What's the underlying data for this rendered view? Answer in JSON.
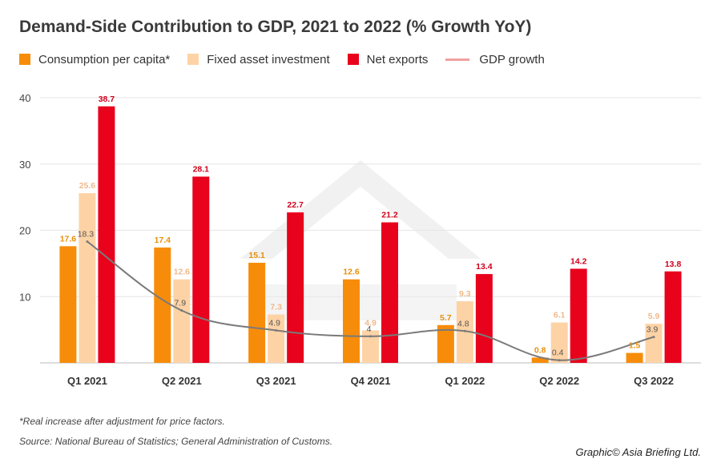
{
  "chart_data": {
    "type": "bar",
    "title": "Demand-Side Contribution to GDP, 2021 to 2022 (% Growth YoY)",
    "categories": [
      "Q1 2021",
      "Q2 2021",
      "Q3 2021",
      "Q4 2021",
      "Q1 2022",
      "Q2 2022",
      "Q3 2022"
    ],
    "series": [
      {
        "name": "Consumption per capita*",
        "type": "bar",
        "color": "#f78c0a",
        "label_color": "#e8900c",
        "values": [
          17.6,
          17.4,
          15.1,
          12.6,
          5.7,
          0.8,
          1.5
        ]
      },
      {
        "name": "Fixed asset investment",
        "type": "bar",
        "color": "#fdd3a6",
        "label_color": "#f0b98a",
        "values": [
          25.6,
          12.6,
          7.3,
          4.9,
          9.3,
          6.1,
          5.9
        ]
      },
      {
        "name": "Net exports",
        "type": "bar",
        "color": "#e8021c",
        "label_color": "#d0021b",
        "values": [
          38.7,
          28.1,
          22.7,
          21.2,
          13.4,
          14.2,
          13.8
        ]
      },
      {
        "name": "GDP growth",
        "type": "line",
        "color": "#7a7a7a",
        "legend_color": "#f0a0a0",
        "label_color": "#555555",
        "values": [
          18.3,
          7.9,
          4.9,
          4,
          4.8,
          0.4,
          3.9
        ]
      }
    ],
    "xlabel": "",
    "ylabel": "",
    "ylim": [
      0,
      40
    ],
    "yticks": [
      10,
      20,
      30,
      40
    ],
    "grid": true,
    "legend_position": "top-left"
  },
  "footnote": "*Real increase after adjustment for price factors.",
  "source": "Source: National Bureau of Statistics; General Administration of Customs.",
  "credit": "Graphic© Asia Briefing Ltd."
}
